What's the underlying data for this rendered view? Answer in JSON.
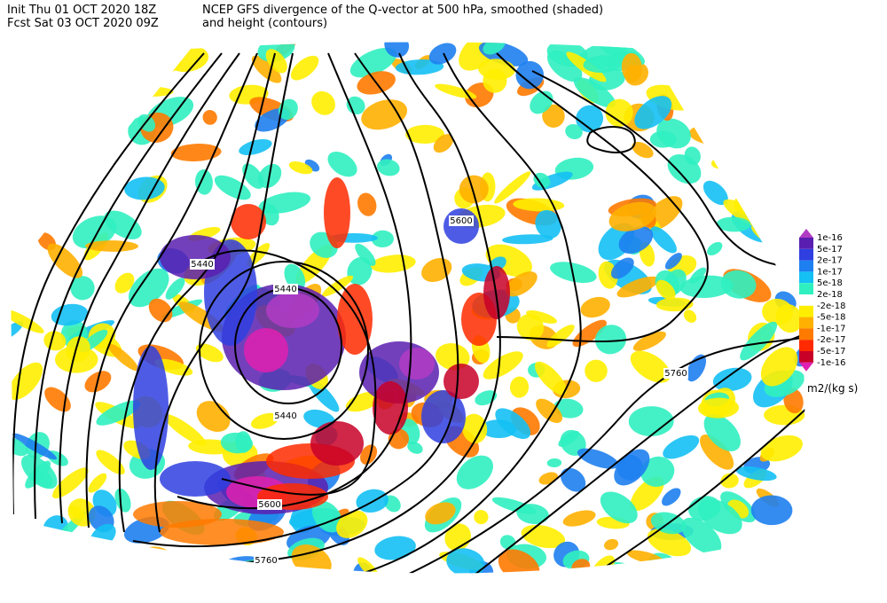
{
  "header": {
    "init": "Init  Thu 01 OCT 2020 18Z",
    "fcst": "Fcst Sat 03 OCT 2020 09Z",
    "title_line1": "NCEP GFS divergence of the Q-vector at 500 hPa, smoothed (shaded)",
    "title_line2": "and height (contours)"
  },
  "legend": {
    "labels": [
      "1e-16",
      "5e-17",
      "2e-17",
      "1e-17",
      "5e-18",
      "2e-18",
      "-2e-18",
      "-5e-18",
      "-1e-17",
      "-2e-17",
      "-5e-17",
      "-1e-16"
    ],
    "colors": [
      "#b13cc4",
      "#5a1fb0",
      "#2f3fe0",
      "#1e7ff0",
      "#14c0f4",
      "#30f0c0",
      "#ffffff",
      "#ffee00",
      "#ffb000",
      "#ff7a00",
      "#ff2a00",
      "#c80028",
      "#e020b0"
    ],
    "units": "m2/(kg s)"
  },
  "contour_labels": [
    "5600",
    "5440",
    "5440",
    "5440",
    "5760",
    "5600",
    "5760"
  ]
}
